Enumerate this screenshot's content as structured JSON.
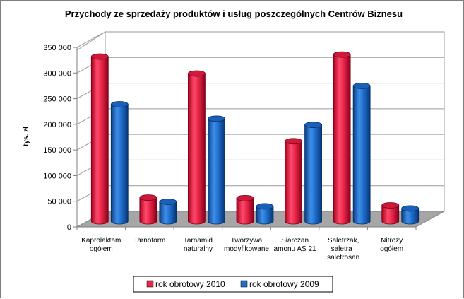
{
  "chart_data": {
    "type": "bar",
    "title": "Przychody ze sprzedaży produktów i usług poszczególnych Centrów Biznesu",
    "ylabel": "tys. zł",
    "xlabel": "",
    "ylim": [
      0,
      350000
    ],
    "yticks": [
      0,
      50000,
      100000,
      150000,
      200000,
      250000,
      300000,
      350000
    ],
    "ytick_labels": [
      "0",
      "50 000",
      "100 000",
      "150 000",
      "200 000",
      "250 000",
      "300 000",
      "350 000"
    ],
    "categories": [
      [
        "Kaprolaktam",
        "ogółem"
      ],
      [
        "Tarnoform"
      ],
      [
        "Tarnamid",
        "naturalny"
      ],
      [
        "Tworzywa",
        "modyfikowane"
      ],
      [
        "Siarczan",
        "amonu AS 21"
      ],
      [
        "Saletrzak,",
        "saletra i",
        "saletrosan"
      ],
      [
        "Nitrozy",
        "ogółem"
      ]
    ],
    "series": [
      {
        "name": "rok obrotowy 2010",
        "color": "#e8264a",
        "values": [
          321000,
          46000,
          288000,
          45000,
          156000,
          325000,
          31000
        ]
      },
      {
        "name": "rok obrotowy 2009",
        "color": "#1f6fce",
        "values": [
          228000,
          38000,
          200000,
          29000,
          188000,
          264000,
          25000
        ]
      }
    ],
    "grid": true,
    "legend_position": "bottom",
    "style": "3d-cylinder"
  }
}
